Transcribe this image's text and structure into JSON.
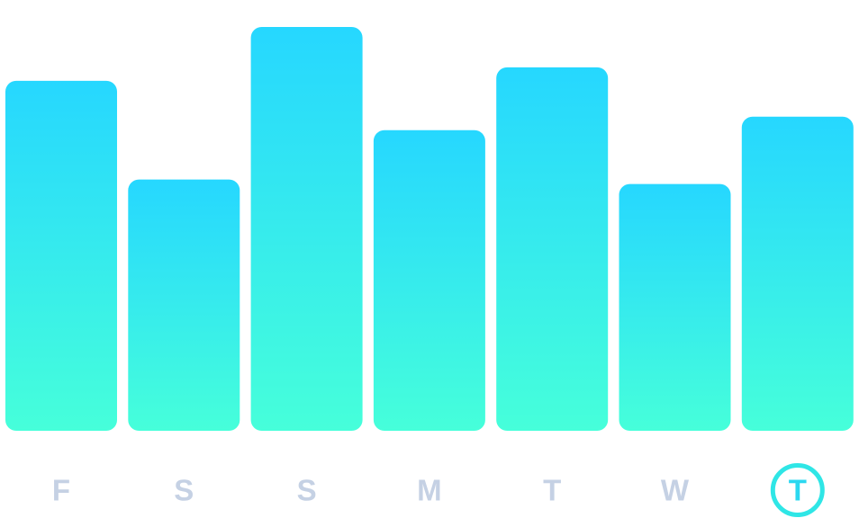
{
  "chart_data": {
    "type": "bar",
    "categories": [
      "F",
      "S",
      "S",
      "M",
      "T",
      "W",
      "T"
    ],
    "values": [
      78,
      56,
      90,
      67,
      81,
      55,
      70
    ],
    "selected_index": 6,
    "ylim": [
      0,
      96
    ],
    "grid": false,
    "legend": "none",
    "title": "",
    "xlabel": "",
    "ylabel": ""
  },
  "colors": {
    "bar_top": "#26d7ff",
    "bar_bottom": "#46ffda",
    "label": "#c5d1e4",
    "selected_label": "#2bd8f0",
    "selected_ring": "#2fe6e6"
  }
}
